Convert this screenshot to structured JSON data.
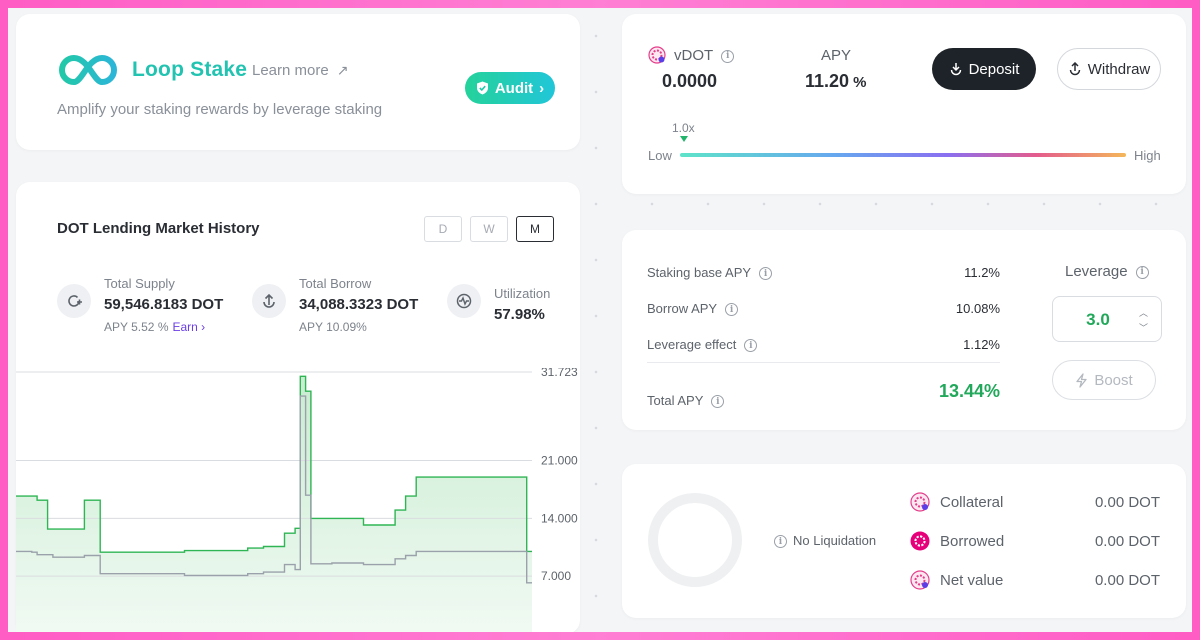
{
  "header": {
    "brand": "Loop Stake",
    "learn_more": "Learn more",
    "learn_more_arrow": "↗",
    "audit_label": "Audit",
    "audit_chevron": "›",
    "tagline": "Amplify your staking rewards by leverage staking"
  },
  "chart_card": {
    "title": "DOT Lending Market History",
    "periods": [
      "D",
      "W",
      "M"
    ],
    "active_period": "M",
    "supply": {
      "label": "Total Supply",
      "value": "59,546.8183 DOT",
      "apy": "APY 5.52 %",
      "earn": "Earn ›"
    },
    "borrow": {
      "label": "Total Borrow",
      "value": "34,088.3323 DOT",
      "apy": "APY 10.09%"
    },
    "utilization": {
      "label": "Utilization",
      "value": "57.98%"
    }
  },
  "chart_data": {
    "type": "line",
    "y_ticks": [
      "31.723",
      "21.000",
      "14.000",
      "7.000"
    ],
    "ylim": [
      0,
      31.723
    ],
    "grid": true,
    "series": [
      {
        "color": "#2fb554",
        "fill": true,
        "values": [
          16.7,
          16.7,
          16.7,
          16.7,
          16.2,
          16.2,
          12.7,
          12.7,
          12.7,
          12.7,
          12.7,
          12.7,
          12.7,
          16.2,
          16.2,
          16.2,
          9.9,
          9.9,
          9.9,
          9.9,
          9.9,
          9.9,
          9.9,
          9.9,
          9.9,
          9.9,
          9.9,
          9.9,
          9.9,
          9.9,
          9.9,
          9.9,
          10.1,
          10.1,
          10.1,
          10.1,
          10.1,
          10.1,
          10.1,
          10.1,
          10.1,
          10.1,
          10.1,
          10.1,
          10.4,
          10.4,
          10.4,
          10.6,
          10.6,
          10.6,
          10.6,
          12.2,
          12.2,
          12.8,
          31.2,
          29.4,
          14.0,
          14.0,
          14.0,
          14.0,
          14.0,
          14.0,
          14.0,
          14.0,
          14.0,
          14.0,
          13.2,
          13.2,
          13.2,
          13.2,
          13.2,
          13.2,
          15.0,
          15.0,
          16.7,
          16.7,
          19.0,
          19.0,
          19.0,
          19.0,
          19.0,
          19.0,
          19.0,
          19.0,
          19.0,
          19.0,
          19.0,
          19.0,
          19.0,
          19.0,
          19.0,
          19.0,
          19.0,
          19.0,
          19.0,
          19.0,
          19.0,
          10.0
        ]
      },
      {
        "color": "#9aa1ab",
        "fill": false,
        "values": [
          10.0,
          10.0,
          10.0,
          9.9,
          9.6,
          9.6,
          9.6,
          9.3,
          9.3,
          9.3,
          9.3,
          9.3,
          9.3,
          9.5,
          9.5,
          9.5,
          7.3,
          7.3,
          7.3,
          7.3,
          7.3,
          7.3,
          7.3,
          7.3,
          7.3,
          7.3,
          7.3,
          7.3,
          7.3,
          7.3,
          7.3,
          7.3,
          7.1,
          7.1,
          7.1,
          7.1,
          7.1,
          7.1,
          7.1,
          7.1,
          7.1,
          7.1,
          7.1,
          7.1,
          7.3,
          7.3,
          7.3,
          7.5,
          7.5,
          7.5,
          7.5,
          8.4,
          8.4,
          7.8,
          28.8,
          16.8,
          8.5,
          8.5,
          8.5,
          8.5,
          8.6,
          8.6,
          8.6,
          8.6,
          8.6,
          8.6,
          8.4,
          8.4,
          8.4,
          8.4,
          8.4,
          8.4,
          9.1,
          9.1,
          9.5,
          9.5,
          10.0,
          10.0,
          10.0,
          10.0,
          10.0,
          10.0,
          10.0,
          10.0,
          10.0,
          10.0,
          10.0,
          10.0,
          10.0,
          10.0,
          10.0,
          10.0,
          10.0,
          10.0,
          10.0,
          10.0,
          10.0,
          6.2
        ]
      }
    ]
  },
  "deposit_card": {
    "token": "vDOT",
    "balance": "0.0000",
    "apy_label": "APY",
    "apy_value": "11.20",
    "apy_pct": "%",
    "deposit_label": "Deposit",
    "withdraw_label": "Withdraw",
    "leverage_current": "1.0x",
    "low_label": "Low",
    "high_label": "High"
  },
  "apy_card": {
    "rows": [
      {
        "label": "Staking base APY",
        "value": "11.2%"
      },
      {
        "label": "Borrow APY",
        "value": "10.08%"
      },
      {
        "label": "Leverage effect",
        "value": "1.12%"
      }
    ],
    "total_label": "Total APY",
    "total_value": "13.44%",
    "leverage_label": "Leverage",
    "leverage_value": "3.0",
    "boost_label": "Boost"
  },
  "position_card": {
    "no_liquidation": "No Liquidation",
    "items": [
      {
        "label": "Collateral",
        "value": "0.00 DOT"
      },
      {
        "label": "Borrowed",
        "value": "0.00 DOT"
      },
      {
        "label": "Net value",
        "value": "0.00 DOT"
      }
    ]
  },
  "colors": {
    "brand": "#23c3b1",
    "accent_green": "#21a85a",
    "earn_purple": "#6b3ee6",
    "frame_pink": "#ff5cc4",
    "dark_button": "#1e2329"
  }
}
